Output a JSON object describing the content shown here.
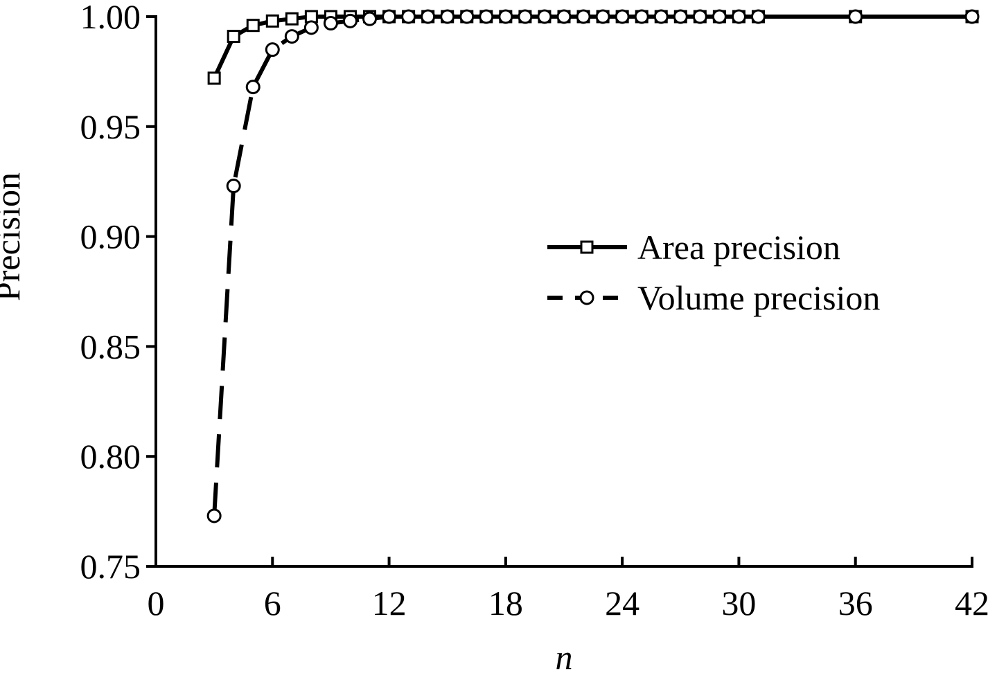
{
  "chart_data": {
    "type": "line",
    "xlabel": "n",
    "ylabel": "Precision",
    "x": [
      3,
      4,
      5,
      6,
      7,
      8,
      9,
      10,
      11,
      12,
      13,
      14,
      15,
      16,
      17,
      18,
      19,
      20,
      21,
      22,
      23,
      24,
      25,
      26,
      27,
      28,
      29,
      30,
      31,
      36,
      42
    ],
    "series": [
      {
        "name": "Area precision",
        "color": "#000000",
        "marker": "square",
        "linestyle": "solid",
        "values": [
          0.972,
          0.991,
          0.996,
          0.998,
          0.999,
          1.0,
          1.0,
          1.0,
          1.0,
          1.0,
          1.0,
          1.0,
          1.0,
          1.0,
          1.0,
          1.0,
          1.0,
          1.0,
          1.0,
          1.0,
          1.0,
          1.0,
          1.0,
          1.0,
          1.0,
          1.0,
          1.0,
          1.0,
          1.0,
          1.0,
          1.0
        ]
      },
      {
        "name": "Volume precision",
        "color": "#000000",
        "marker": "circle",
        "linestyle": "dashed",
        "values": [
          0.773,
          0.923,
          0.968,
          0.985,
          0.991,
          0.995,
          0.997,
          0.998,
          0.999,
          1.0,
          1.0,
          1.0,
          1.0,
          1.0,
          1.0,
          1.0,
          1.0,
          1.0,
          1.0,
          1.0,
          1.0,
          1.0,
          1.0,
          1.0,
          1.0,
          1.0,
          1.0,
          1.0,
          1.0,
          1.0,
          1.0
        ]
      }
    ],
    "xlim": [
      0,
      42
    ],
    "xticks": [
      0,
      6,
      12,
      18,
      24,
      30,
      36,
      42
    ],
    "ylim": [
      0.75,
      1.0
    ],
    "yticks": [
      {
        "value": 0.75,
        "label": "0.75"
      },
      {
        "value": 0.8,
        "label": "0.80"
      },
      {
        "value": 0.85,
        "label": "0.85"
      },
      {
        "value": 0.9,
        "label": "0.90"
      },
      {
        "value": 0.95,
        "label": "0.95"
      },
      {
        "value": 1.0,
        "label": "1.00"
      }
    ],
    "legend": "right"
  }
}
